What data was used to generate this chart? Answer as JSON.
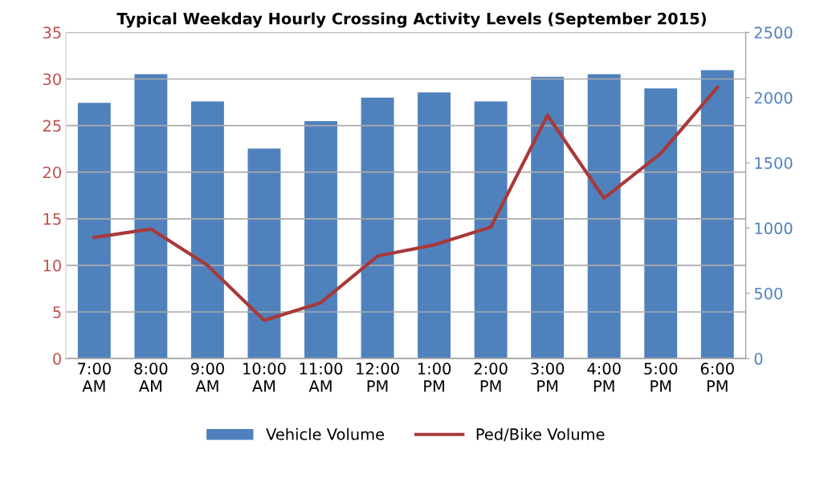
{
  "chart_data": {
    "type": "bar",
    "title": "Typical Weekday Hourly Crossing Activity Levels (September 2015)",
    "categories": [
      "7:00\nAM",
      "8:00\nAM",
      "9:00\nAM",
      "10:00\nAM",
      "11:00\nAM",
      "12:00\nPM",
      "1:00\nPM",
      "2:00\nPM",
      "3:00\nPM",
      "4:00\nPM",
      "5:00\nPM",
      "6:00\nPM"
    ],
    "series": [
      {
        "name": "Vehicle Volume",
        "axis": "y2",
        "color": "#4f81bd",
        "values": [
          1960,
          2180,
          1970,
          1610,
          1820,
          2000,
          2040,
          1970,
          2160,
          2180,
          2070,
          2210
        ]
      },
      {
        "name": "Ped/Bike Volume",
        "type": "line",
        "color": "#a8393a",
        "values": [
          13.0,
          13.9,
          10.0,
          4.1,
          6.0,
          11.0,
          12.2,
          14.1,
          26.1,
          17.2,
          22.0,
          29.1
        ]
      }
    ],
    "ylim": [
      0,
      35
    ],
    "yticks": [
      0,
      5,
      10,
      15,
      20,
      25,
      30,
      35
    ],
    "y2lim": [
      0,
      2500
    ],
    "y2ticks": [
      0,
      500,
      1000,
      1500,
      2000,
      2500
    ],
    "grid": "y",
    "legend": "bottom",
    "marker": "none",
    "line_style": "solid"
  }
}
